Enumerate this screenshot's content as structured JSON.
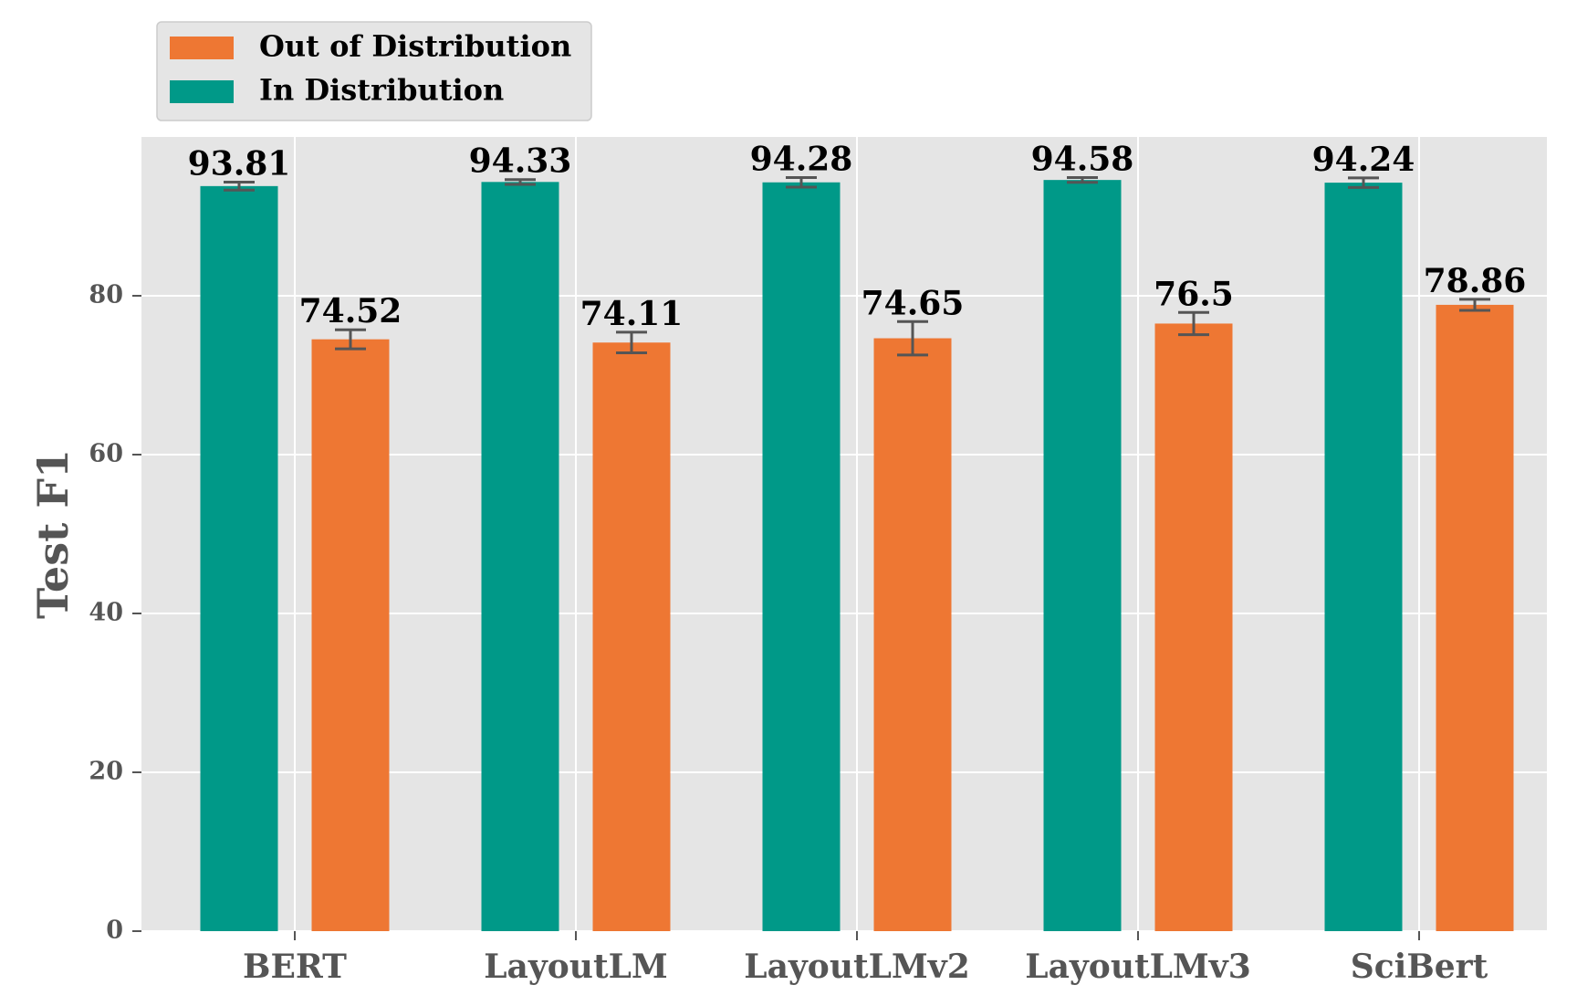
{
  "chart_data": {
    "type": "bar",
    "title": "",
    "xlabel": "",
    "ylabel": "Test F1",
    "ylim": [
      0,
      100
    ],
    "yticks": [
      0,
      20,
      40,
      60,
      80
    ],
    "grid": true,
    "legend_position": "top-left, above plot",
    "categories": [
      "BERT",
      "LayoutLM",
      "LayoutLMv2",
      "LayoutLMv3",
      "SciBert"
    ],
    "series": [
      {
        "name": "In Distribution",
        "color": "#009988",
        "values": [
          93.81,
          94.33,
          94.28,
          94.58,
          94.24
        ],
        "errors": [
          0.5,
          0.3,
          0.6,
          0.3,
          0.6
        ],
        "labels": [
          "93.81",
          "94.33",
          "94.28",
          "94.58",
          "94.24"
        ]
      },
      {
        "name": "Out of Distribution",
        "color": "#EE7733",
        "values": [
          74.52,
          74.11,
          74.65,
          76.5,
          78.86
        ],
        "errors": [
          1.2,
          1.3,
          2.1,
          1.4,
          0.7
        ],
        "labels": [
          "74.52",
          "74.11",
          "74.65",
          "76.5",
          "78.86"
        ]
      }
    ],
    "legend_order": [
      "Out of Distribution",
      "In Distribution"
    ]
  },
  "colors": {
    "plot_background": "#E5E5E5",
    "grid": "#FFFFFF",
    "error_bar": "#555555"
  }
}
